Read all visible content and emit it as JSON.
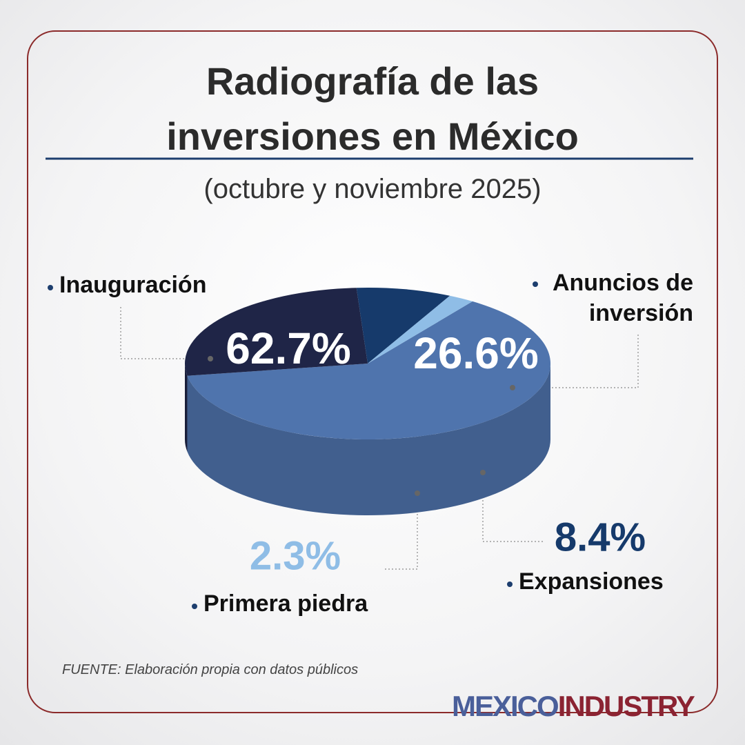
{
  "chart_data": {
    "type": "pie3d",
    "title": "Radiografía de las inversiones en México",
    "subtitle": "(octubre y noviembre 2025)",
    "categories": [
      "Inauguración",
      "Anuncios de inversión",
      "Expansiones",
      "Primera piedra"
    ],
    "values": [
      62.7,
      26.6,
      8.4,
      2.3
    ],
    "value_labels": [
      "62.7%",
      "26.6%",
      "8.4%",
      "2.3%"
    ],
    "colors": [
      "#4f74ad",
      "#1f2547",
      "#163a6b",
      "#8fbde6"
    ],
    "source": "FUENTE: Elaboración propia con datos públicos"
  },
  "brand": {
    "part1": "MEXICO",
    "part2": "INDUSTRY"
  }
}
